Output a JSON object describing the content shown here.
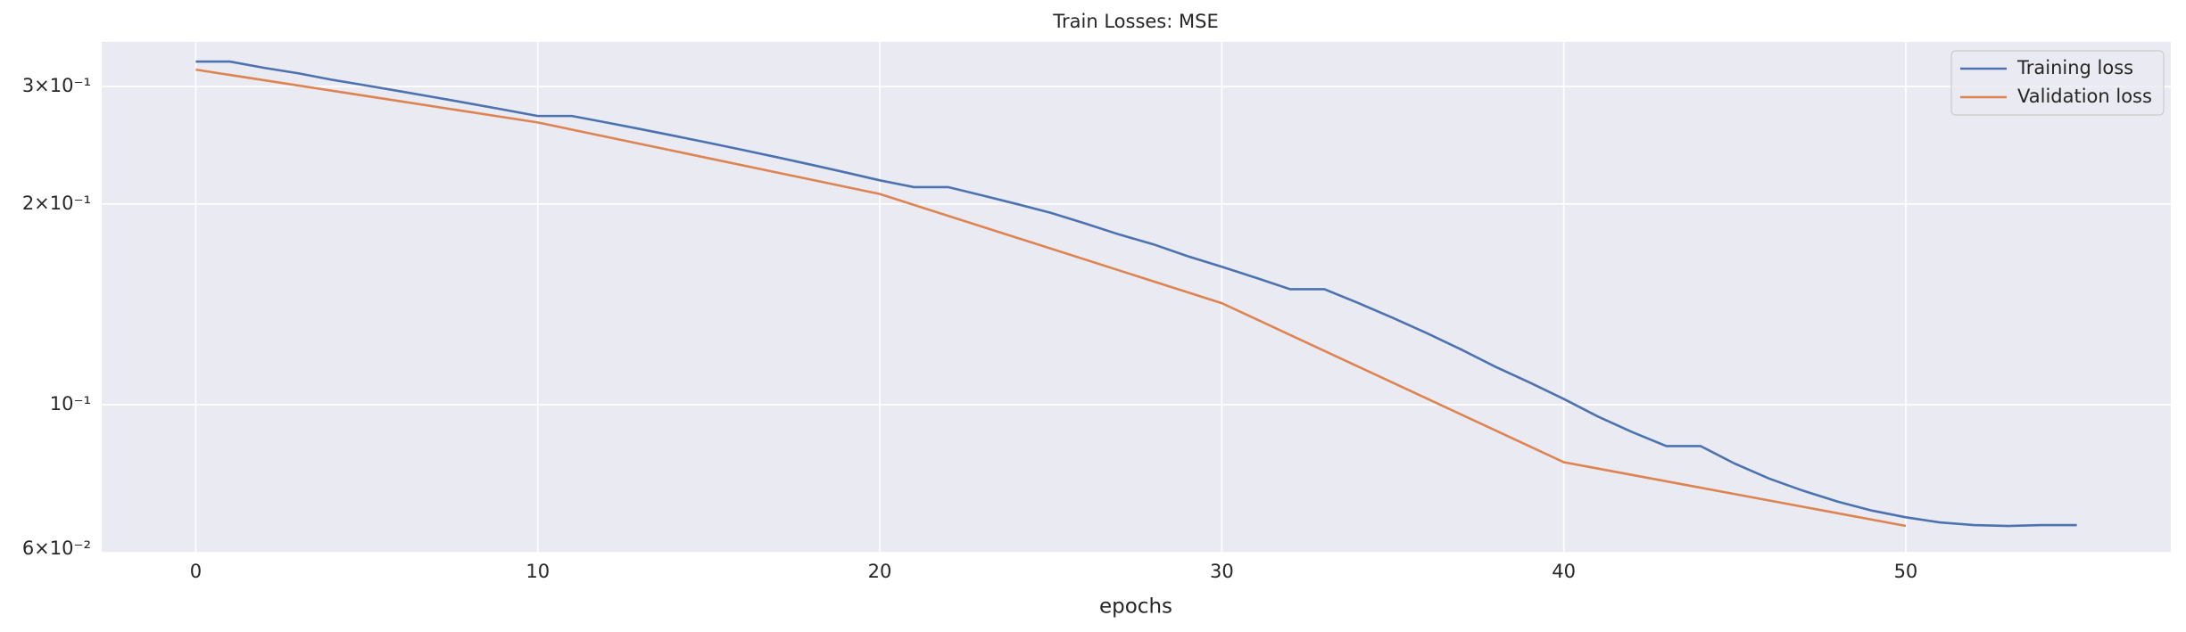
{
  "chart_data": {
    "type": "line",
    "title": "Train Losses:  MSE",
    "x_label": "epochs",
    "log_scale_y": true,
    "grid": true,
    "legend_position": "upper right",
    "xlim": [
      -2.75,
      57.75
    ],
    "xticks": [
      0,
      10,
      20,
      30,
      40,
      50
    ],
    "ylim": [
      0.06,
      0.35
    ],
    "yticks": [
      {
        "value": 0.06,
        "label": "6×10⁻²"
      },
      {
        "value": 0.1,
        "label": "10⁻¹"
      },
      {
        "value": 0.2,
        "label": "2×10⁻¹"
      },
      {
        "value": 0.3,
        "label": "3×10⁻¹"
      }
    ],
    "series": [
      {
        "name": "Training loss",
        "color": "#4c72b0",
        "x": [
          0,
          1,
          2,
          3,
          4,
          5,
          6,
          7,
          8,
          9,
          10,
          11,
          12,
          13,
          14,
          15,
          16,
          17,
          18,
          19,
          20,
          21,
          22,
          23,
          24,
          25,
          26,
          27,
          28,
          29,
          30,
          31,
          32,
          33,
          34,
          35,
          36,
          37,
          38,
          39,
          40,
          41,
          42,
          43,
          44,
          45,
          46,
          47,
          48,
          49,
          50,
          51,
          52,
          53,
          54,
          55
        ],
        "values": [
          0.327,
          0.327,
          0.32,
          0.314,
          0.307,
          0.301,
          0.295,
          0.289,
          0.283,
          0.277,
          0.271,
          0.271,
          0.265,
          0.259,
          0.253,
          0.247,
          0.241,
          0.235,
          0.229,
          0.223,
          0.217,
          0.212,
          0.212,
          0.206,
          0.2,
          0.194,
          0.187,
          0.18,
          0.174,
          0.167,
          0.161,
          0.155,
          0.149,
          0.149,
          0.142,
          0.135,
          0.128,
          0.121,
          0.114,
          0.108,
          0.102,
          0.096,
          0.091,
          0.0867,
          0.0867,
          0.0816,
          0.0775,
          0.0743,
          0.0716,
          0.0694,
          0.0678,
          0.0666,
          0.066,
          0.0658,
          0.066,
          0.066
        ]
      },
      {
        "name": "Validation loss",
        "color": "#dd8452",
        "x": [
          0,
          10,
          20,
          30,
          40,
          50
        ],
        "values": [
          0.318,
          0.265,
          0.207,
          0.142,
          0.082,
          0.0658
        ]
      }
    ]
  }
}
